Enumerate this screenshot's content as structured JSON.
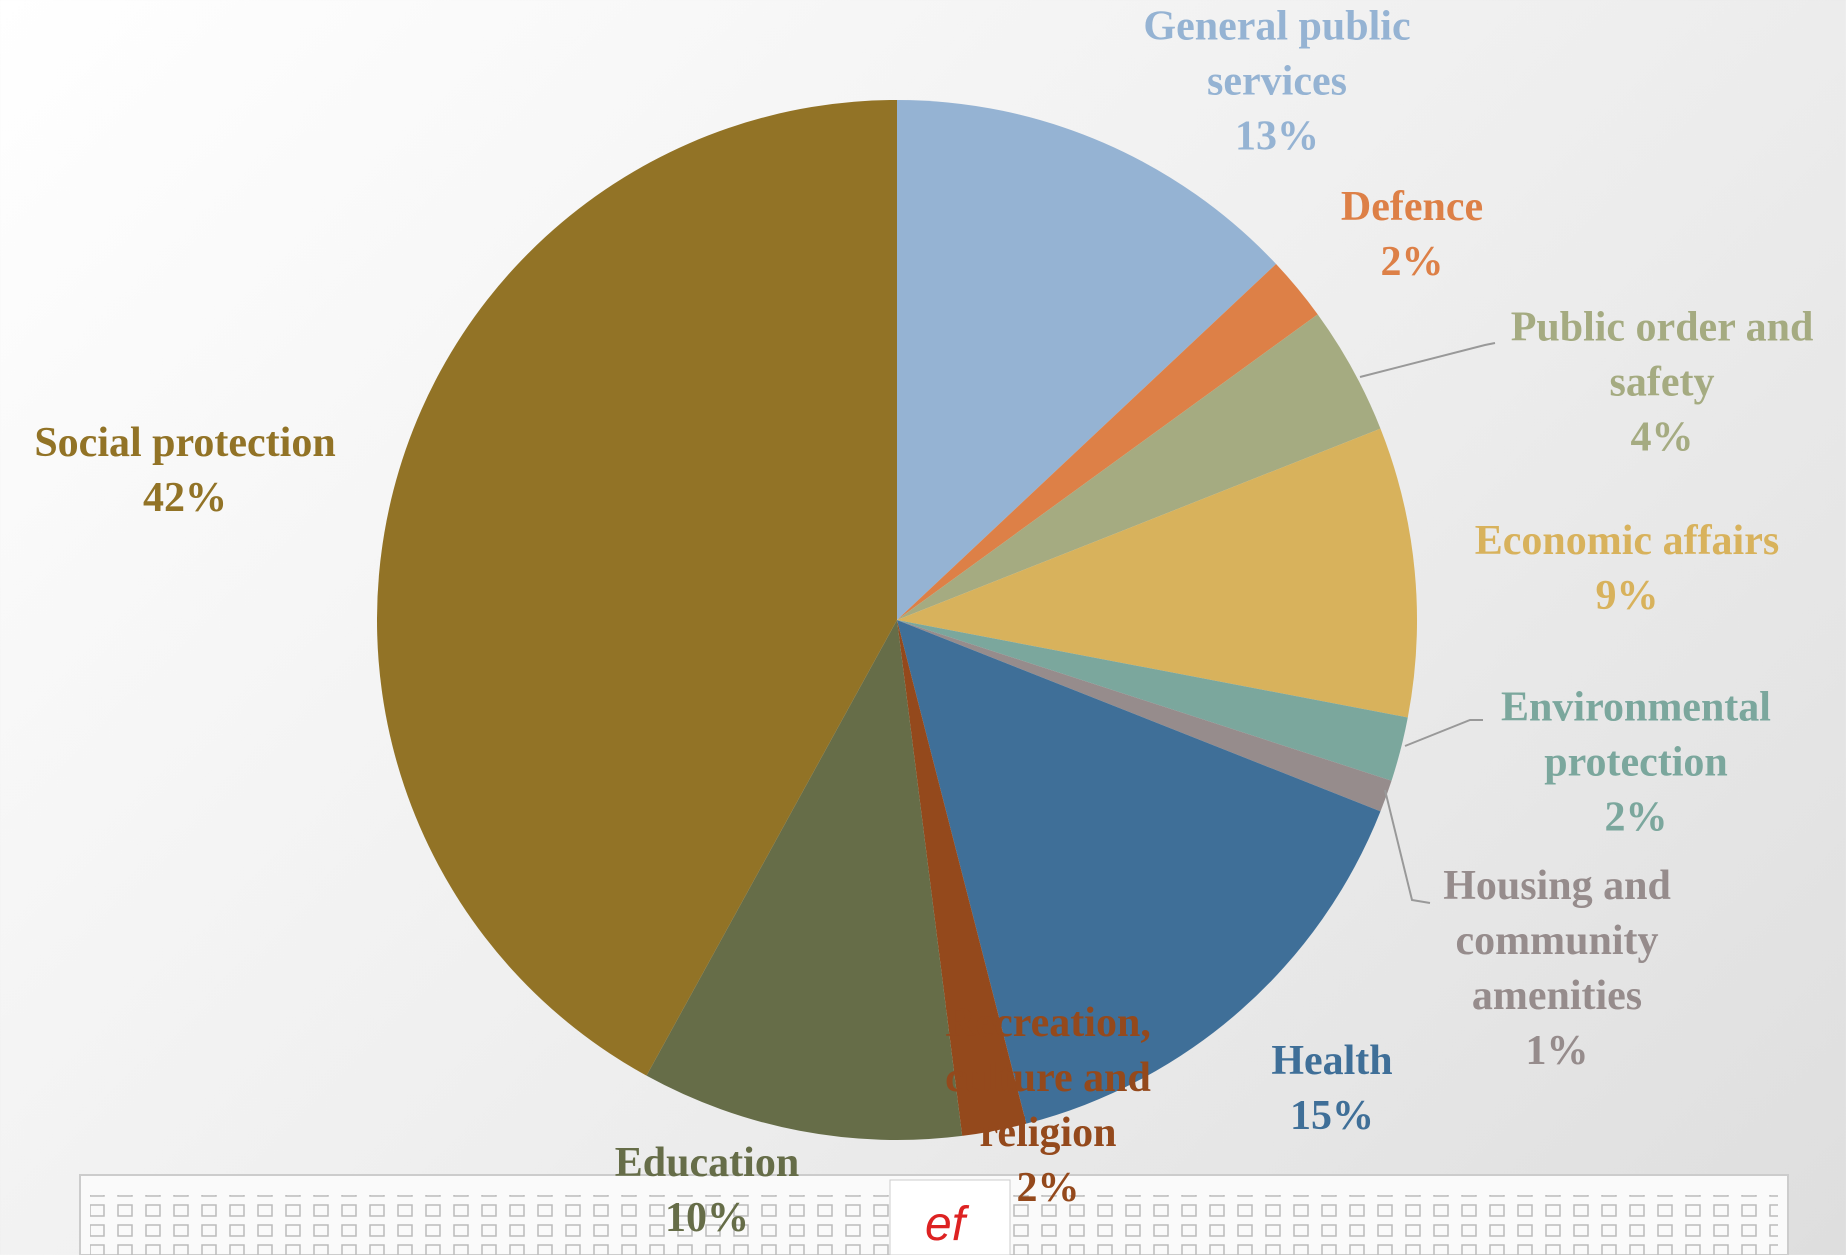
{
  "chart_data": {
    "type": "pie",
    "categories": [
      "General public services",
      "Defence",
      "Public order and safety",
      "Economic affairs",
      "Environmental protection",
      "Housing and community amenities",
      "Health",
      "Recreation, culture and religion",
      "Education",
      "Social protection"
    ],
    "values": [
      13,
      2,
      4,
      9,
      2,
      1,
      15,
      2,
      10,
      42
    ],
    "value_labels": [
      "13%",
      "2%",
      "4%",
      "9%",
      "2%",
      "1%",
      "15%",
      "2%",
      "10%",
      "42%"
    ],
    "colors": [
      "#95b3d3",
      "#dd8047",
      "#a5ab81",
      "#d8b25c",
      "#7ba79d",
      "#968c8c",
      "#3f6f98",
      "#94491c",
      "#666d48",
      "#927326"
    ]
  }
}
